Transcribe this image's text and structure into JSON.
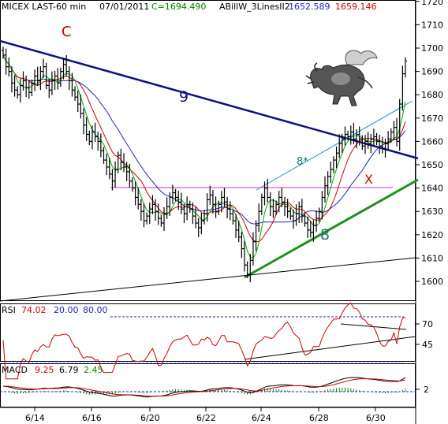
{
  "header": {
    "symbol": "MICEX LAST-60 min",
    "date": "07/01/2011",
    "close_label": "C=1694.490",
    "indicator": "ABillW_3LinesII2",
    "ind_val1": "1652.589",
    "ind_val2": "1659.146"
  },
  "colors": {
    "price_bar": "#000000",
    "ma_fast": "#00aa00",
    "ma_mid": "#cc0000",
    "ma_slow": "#2222cc",
    "trend_9": "#101080",
    "trend_8": "#209020",
    "channel": "#2090c0",
    "hline": "#cc33cc",
    "rsi_line": "#cc0000",
    "macd_line": "#000000",
    "macd_signal": "#cc0000",
    "macd_hist": "#008000",
    "label_red": "#cc0000",
    "label_teal": "#207070",
    "label_navy": "#101080"
  },
  "icons": {
    "bull": "flying-bull-icon"
  },
  "annotations": {
    "c_label": "C",
    "line9_label": "9",
    "line8_label": "8",
    "channel_label": "8*",
    "x_label": "X"
  },
  "rsi": {
    "label": "RSI",
    "value": "74.02",
    "lower": "20.00",
    "upper": "80.00"
  },
  "macd": {
    "label": "MACD",
    "value": "9.25",
    "signal": "6.79",
    "hist": "2.45"
  },
  "chart_data": {
    "type": "candlestick",
    "x_ticks": [
      "6/14",
      "6/16",
      "6/20",
      "6/22",
      "6/24",
      "6/28",
      "6/30"
    ],
    "y_ticks": [
      1600,
      1610,
      1620,
      1630,
      1640,
      1650,
      1660,
      1670,
      1680,
      1690,
      1700,
      1710,
      1720
    ],
    "ylim": [
      1590,
      1723
    ],
    "rsi_ticks": [
      45,
      70
    ],
    "macd_ticks": [
      2
    ],
    "closes": [
      1697,
      1692,
      1690,
      1685,
      1682,
      1680,
      1684,
      1686,
      1683,
      1681,
      1685,
      1688,
      1686,
      1690,
      1692,
      1684,
      1682,
      1686,
      1688,
      1685,
      1690,
      1693,
      1690,
      1686,
      1682,
      1679,
      1676,
      1672,
      1667,
      1663,
      1660,
      1664,
      1662,
      1660,
      1656,
      1652,
      1649,
      1646,
      1643,
      1648,
      1654,
      1651,
      1649,
      1647,
      1643,
      1640,
      1636,
      1633,
      1630,
      1626,
      1628,
      1631,
      1633,
      1630,
      1627,
      1625,
      1629,
      1632,
      1636,
      1638,
      1636,
      1634,
      1631,
      1629,
      1633,
      1631,
      1628,
      1625,
      1623,
      1626,
      1629,
      1635,
      1637,
      1633,
      1630,
      1633,
      1636,
      1634,
      1631,
      1629,
      1626,
      1622,
      1619,
      1614,
      1607,
      1603,
      1609,
      1617,
      1624,
      1630,
      1636,
      1640,
      1636,
      1632,
      1630,
      1633,
      1636,
      1634,
      1632,
      1630,
      1628,
      1626,
      1629,
      1632,
      1628,
      1625,
      1622,
      1621,
      1624,
      1627,
      1630,
      1636,
      1641,
      1645,
      1648,
      1652,
      1655,
      1659,
      1661,
      1663,
      1662,
      1664,
      1661,
      1663,
      1661,
      1658,
      1660,
      1659,
      1661,
      1662,
      1660,
      1658,
      1657,
      1659,
      1661,
      1664,
      1666,
      1660,
      1676,
      1689,
      1694.49
    ]
  }
}
